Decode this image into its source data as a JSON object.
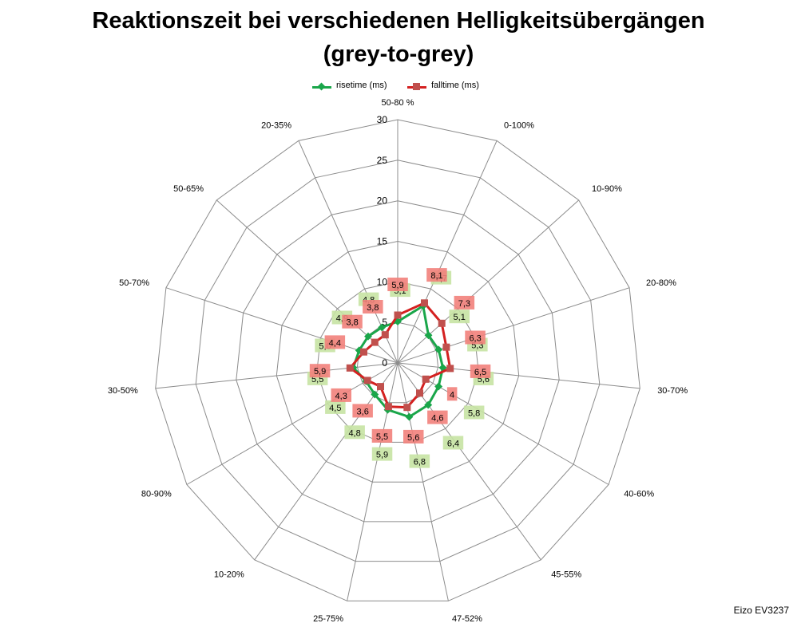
{
  "title_line1": "Reaktionszeit bei verschiedenen Helligkeitsübergängen",
  "title_line2": "(grey-to-grey)",
  "credit": "Eizo EV3237",
  "legend": {
    "rise_label": "risetime (ms)",
    "fall_label": "falltime (ms)"
  },
  "chart_data": {
    "type": "radar",
    "categories": [
      "50-80 %",
      "0-100%",
      "10-90%",
      "20-80%",
      "30-70%",
      "40-60%",
      "45-55%",
      "47-52%",
      "25-75%",
      "10-20%",
      "80-90%",
      "30-50%",
      "50-70%",
      "50-65%",
      "20-35%"
    ],
    "radial_axis": {
      "min": 0,
      "max": 30,
      "step": 5,
      "ticks": [
        "0",
        "5",
        "10",
        "15",
        "20",
        "25",
        "30"
      ]
    },
    "series": [
      {
        "name": "risetime (ms)",
        "color": "#1aa64a",
        "label_bg": "#c6e3a3",
        "values": [
          5.1,
          7.7,
          5.1,
          5.3,
          5.6,
          5.8,
          6.4,
          6.8,
          5.9,
          4.8,
          4.5,
          5.5,
          5.0,
          4.9,
          4.8
        ],
        "labels": [
          "5,1",
          "7,7",
          "5,1",
          "5,3",
          "5,6",
          "5,8",
          "6,4",
          "6,8",
          "5,9",
          "4,8",
          "4,5",
          "5,5",
          "5,0",
          "4,9",
          "4,8"
        ]
      },
      {
        "name": "falltime (ms)",
        "color": "#d42020",
        "label_bg": "#f2817b",
        "values": [
          5.9,
          8.1,
          7.3,
          6.3,
          6.5,
          4.0,
          4.6,
          5.6,
          5.5,
          3.6,
          4.3,
          5.9,
          4.4,
          3.8,
          3.8
        ],
        "labels": [
          "5,9",
          "8,1",
          "7,3",
          "6,3",
          "6,5",
          "4",
          "4,6",
          "5,6",
          "5,5",
          "3,6",
          "4,3",
          "5,9",
          "4,4",
          "3,8",
          "3,8"
        ]
      }
    ],
    "legend_position": "top",
    "grid": true
  }
}
